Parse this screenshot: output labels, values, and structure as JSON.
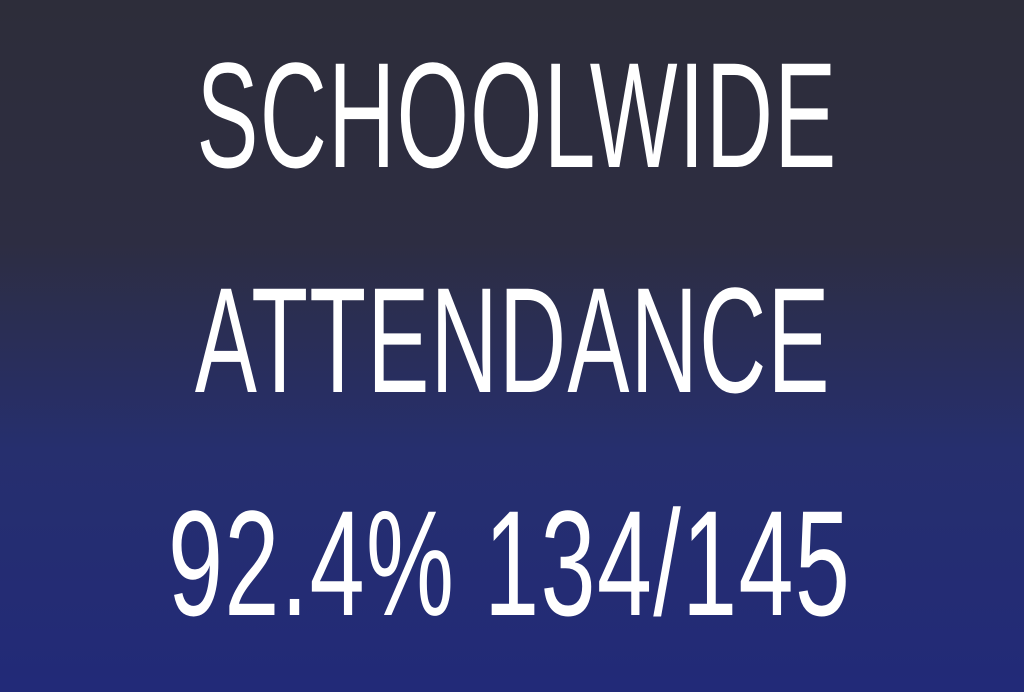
{
  "graphic": {
    "line1": "SCHOOLWIDE",
    "line2": "ATTENDANCE",
    "line3": "92.4% 134/145"
  }
}
